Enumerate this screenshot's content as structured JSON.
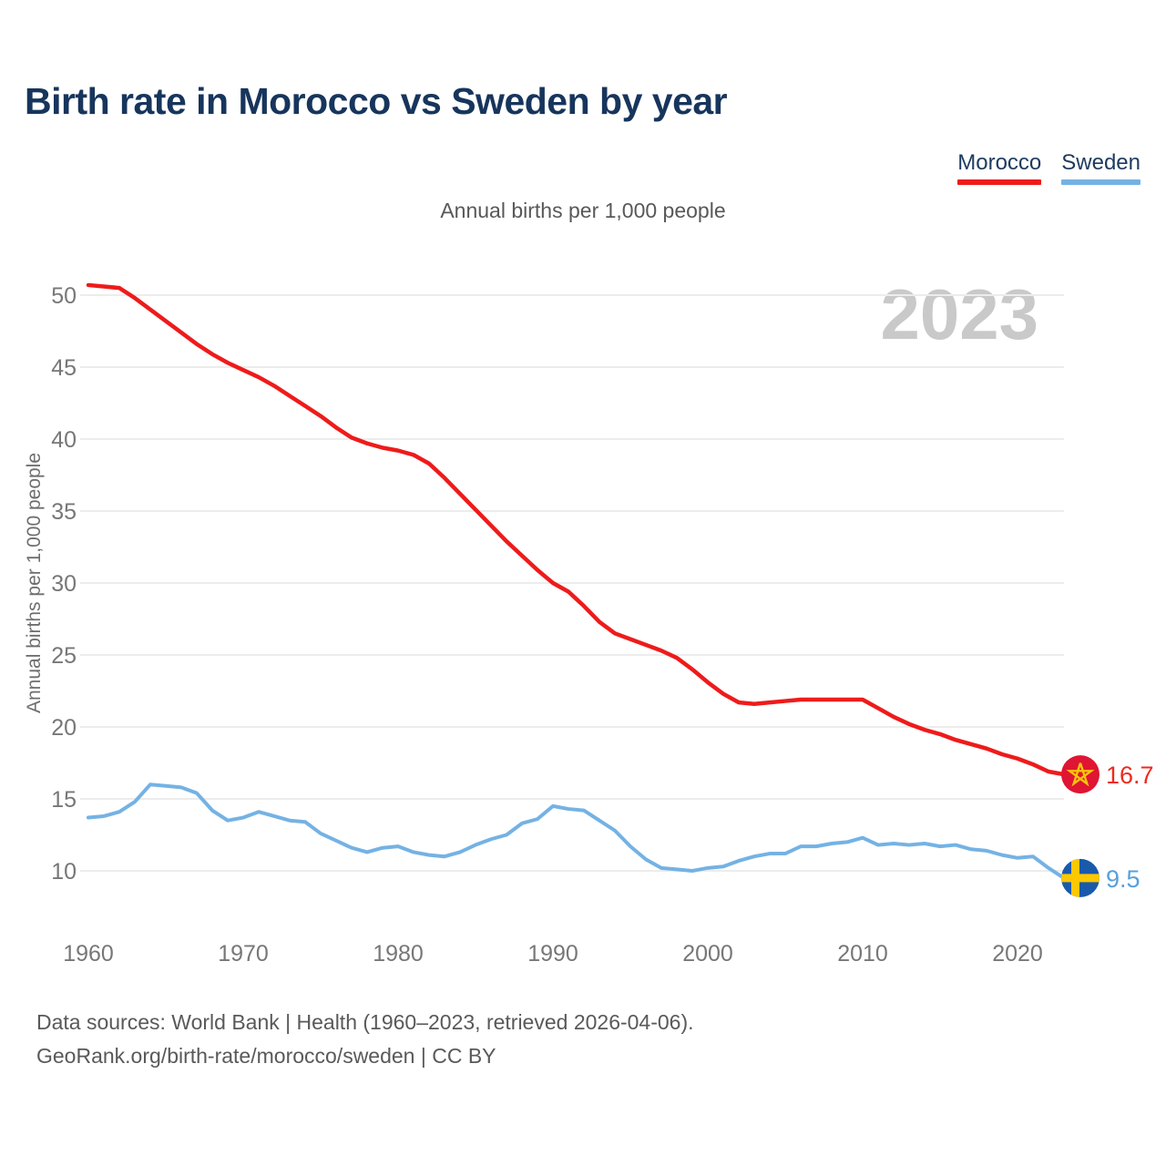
{
  "title": "Birth rate in Morocco vs Sweden by year",
  "subtitle": "Annual births per 1,000 people",
  "watermark": "2023",
  "legend": [
    {
      "label": "Morocco",
      "color": "#ee1b1b"
    },
    {
      "label": "Sweden",
      "color": "#74b2e4"
    }
  ],
  "footer": {
    "line1": "Data sources: World Bank | Health (1960–2023, retrieved 2026-04-06).",
    "line2": "GeoRank.org/birth-rate/morocco/sweden | CC BY"
  },
  "chart_data": {
    "type": "line",
    "title": "Annual births per 1,000 people",
    "xlabel": "",
    "ylabel": "Annual births per 1,000 people",
    "grid": "horizontal",
    "legend_position": "top-right",
    "ylim": [
      8,
      52
    ],
    "y_ticks": [
      10,
      15,
      20,
      25,
      30,
      35,
      40,
      45,
      50
    ],
    "x_ticks": [
      1960,
      1970,
      1980,
      1990,
      2000,
      2010,
      2020
    ],
    "x": [
      1960,
      1961,
      1962,
      1963,
      1964,
      1965,
      1966,
      1967,
      1968,
      1969,
      1970,
      1971,
      1972,
      1973,
      1974,
      1975,
      1976,
      1977,
      1978,
      1979,
      1980,
      1981,
      1982,
      1983,
      1984,
      1985,
      1986,
      1987,
      1988,
      1989,
      1990,
      1991,
      1992,
      1993,
      1994,
      1995,
      1996,
      1997,
      1998,
      1999,
      2000,
      2001,
      2002,
      2003,
      2004,
      2005,
      2006,
      2007,
      2008,
      2009,
      2010,
      2011,
      2012,
      2013,
      2014,
      2015,
      2016,
      2017,
      2018,
      2019,
      2020,
      2021,
      2022,
      2023
    ],
    "series": [
      {
        "name": "Morocco",
        "color": "#ee1b1b",
        "label_color": "#ee2a1e",
        "flag": "morocco",
        "end_label": "16.7",
        "values": [
          50.7,
          50.6,
          50.5,
          49.8,
          49.0,
          48.2,
          47.4,
          46.6,
          45.9,
          45.3,
          44.8,
          44.3,
          43.7,
          43.0,
          42.3,
          41.6,
          40.8,
          40.1,
          39.7,
          39.4,
          39.2,
          38.9,
          38.3,
          37.3,
          36.2,
          35.1,
          34.0,
          32.9,
          31.9,
          30.9,
          30.0,
          29.4,
          28.4,
          27.3,
          26.5,
          26.1,
          25.7,
          25.3,
          24.8,
          24.0,
          23.1,
          22.3,
          21.7,
          21.6,
          21.7,
          21.8,
          21.9,
          21.9,
          21.9,
          21.9,
          21.9,
          21.3,
          20.7,
          20.2,
          19.8,
          19.5,
          19.1,
          18.8,
          18.5,
          18.1,
          17.8,
          17.4,
          16.9,
          16.7
        ]
      },
      {
        "name": "Sweden",
        "color": "#74b2e4",
        "label_color": "#57a0dd",
        "flag": "sweden",
        "end_label": "9.5",
        "values": [
          13.7,
          13.8,
          14.1,
          14.8,
          16.0,
          15.9,
          15.8,
          15.4,
          14.2,
          13.5,
          13.7,
          14.1,
          13.8,
          13.5,
          13.4,
          12.6,
          12.1,
          11.6,
          11.3,
          11.6,
          11.7,
          11.3,
          11.1,
          11.0,
          11.3,
          11.8,
          12.2,
          12.5,
          13.3,
          13.6,
          14.5,
          14.3,
          14.2,
          13.5,
          12.8,
          11.7,
          10.8,
          10.2,
          10.1,
          10.0,
          10.2,
          10.3,
          10.7,
          11.0,
          11.2,
          11.2,
          11.7,
          11.7,
          11.9,
          12.0,
          12.3,
          11.8,
          11.9,
          11.8,
          11.9,
          11.7,
          11.8,
          11.5,
          11.4,
          11.1,
          10.9,
          11.0,
          10.2,
          9.5
        ]
      }
    ],
    "flag_colors": {
      "morocco_circle": "#e01433",
      "morocco_star": "#f5c50a",
      "sweden_circle": "#1a5aab",
      "sweden_cross": "#fdc800"
    }
  }
}
